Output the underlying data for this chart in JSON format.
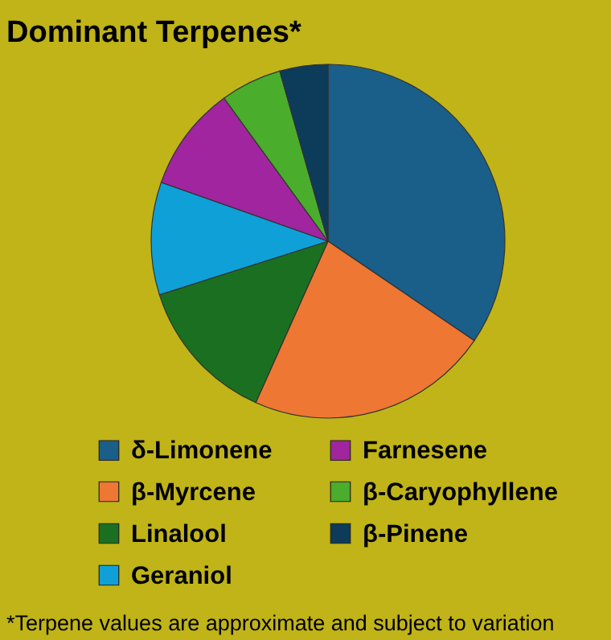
{
  "chart_data": {
    "type": "pie",
    "title": "Dominant Terpenes*",
    "categories": [
      "δ-Limonene",
      "β-Myrcene",
      "Linalool",
      "Geraniol",
      "Farnesene",
      "β-Caryophyllene",
      "β-Pinene"
    ],
    "values": [
      34.5,
      22.2,
      13.4,
      10.3,
      9.6,
      5.6,
      4.4
    ],
    "colors": [
      "#1a5e8a",
      "#ee7733",
      "#1a7020",
      "#0fa0d8",
      "#a0259e",
      "#4aad2c",
      "#0d3b5a"
    ],
    "legend": "bottom",
    "annotations": [
      "*Terpene values are approximate and subject to variation"
    ]
  }
}
